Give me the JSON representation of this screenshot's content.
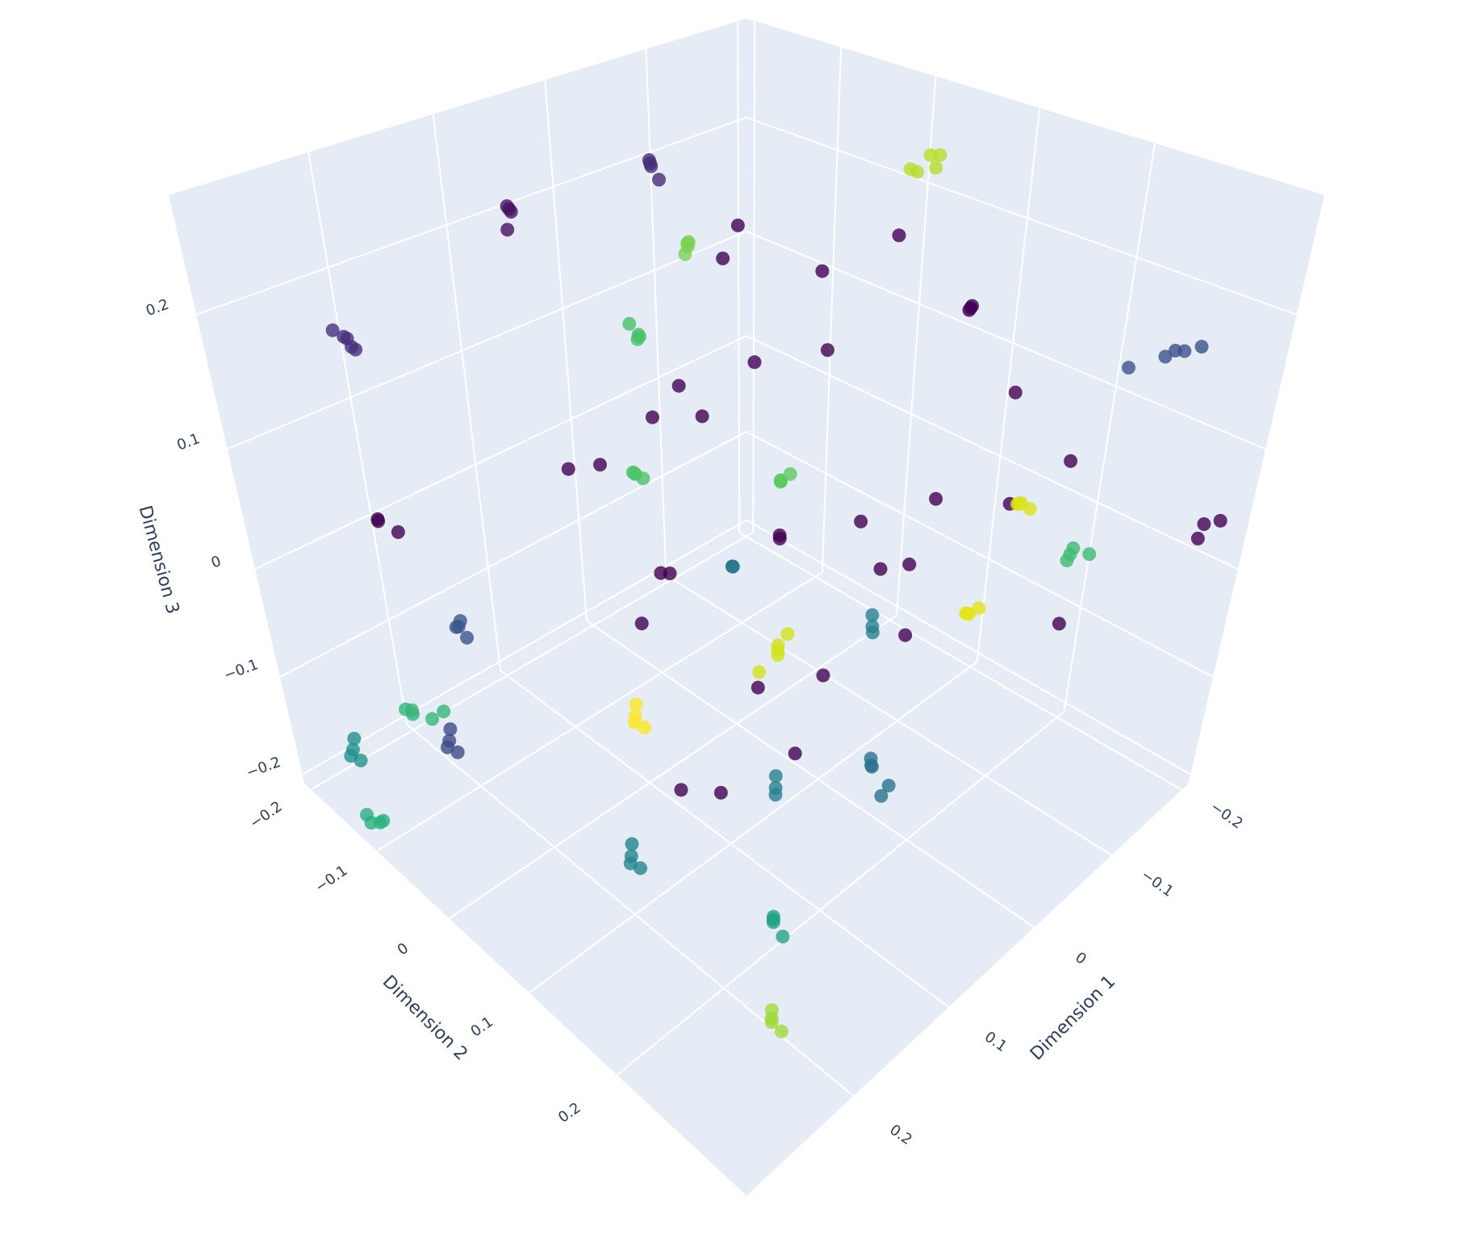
{
  "chart_data": {
    "type": "scatter3d",
    "xaxis_title": "Dimension 1",
    "yaxis_title": "Dimension 2",
    "zaxis_title": "Dimension 3",
    "xlim": [
      -0.21,
      0.3
    ],
    "ylim": [
      -0.21,
      0.33
    ],
    "zlim": [
      -0.21,
      0.28
    ],
    "xticks": [
      {
        "value": -0.2,
        "label": "−0.2"
      },
      {
        "value": -0.1,
        "label": "−0.1"
      },
      0,
      0.1,
      0.2
    ],
    "yticks": [
      {
        "value": -0.2,
        "label": "−0.2"
      },
      {
        "value": -0.1,
        "label": "−0.1"
      },
      0,
      0.1,
      0.2
    ],
    "zticks": [
      {
        "value": -0.2,
        "label": "−0.2"
      },
      {
        "value": -0.1,
        "label": "−0.1"
      },
      0,
      0.1,
      0.2
    ],
    "grid": true,
    "series": [
      {
        "color": "#440154",
        "x": [
          -0.1,
          -0.05,
          0,
          0.05,
          0.1,
          -0.15,
          -0.12,
          -0.08,
          0.02,
          0.08,
          0.12,
          -0.02,
          -0.06,
          0.04,
          0.15,
          -0.1,
          0.0,
          0.06,
          -0.04,
          0.1,
          -0.18,
          -0.13,
          0.07,
          0.11,
          -0.07,
          0.03,
          -0.16,
          0.13,
          0.09,
          -0.03
        ],
        "y": [
          0,
          -0.05,
          0.05,
          0.1,
          0.0,
          0.15,
          0.05,
          -0.1,
          0.12,
          0.15,
          0.05,
          0.0,
          0.08,
          -0.05,
          0.1,
          0.1,
          0.2,
          0.03,
          0.15,
          -0.08,
          0.2,
          0.22,
          0.0,
          0.1,
          0.02,
          0.18,
          0.15,
          0.0,
          0.12,
          -0.1
        ],
        "z": [
          0.1,
          0.2,
          0.0,
          0.05,
          -0.05,
          0.1,
          0.2,
          0.15,
          -0.08,
          -0.1,
          0.03,
          0.12,
          0.0,
          0.08,
          -0.12,
          -0.05,
          0.1,
          0.12,
          -0.06,
          0.05,
          -0.1,
          0.08,
          -0.02,
          -0.15,
          0.18,
          0.05,
          0.0,
          0.1,
          -0.05,
          0.06
        ]
      },
      {
        "color": "#472f7d",
        "x": [
          0.2,
          0.205,
          0.195,
          0.21,
          0.2
        ],
        "y": [
          -0.2,
          -0.195,
          -0.205,
          -0.2,
          -0.19
        ],
        "z": [
          0.15,
          0.155,
          0.14,
          0.16,
          0.145
        ]
      },
      {
        "color": "#3b528b",
        "x": [
          -0.2,
          -0.195,
          -0.205,
          -0.2,
          -0.19
        ],
        "y": [
          0.25,
          0.26,
          0.24,
          0.27,
          0.22
        ],
        "z": [
          0.15,
          0.155,
          0.14,
          0.16,
          0.13
        ]
      },
      {
        "color": "#440154",
        "x": [
          -0.2,
          -0.205,
          -0.195
        ],
        "y": [
          0.3,
          0.31,
          0.3
        ],
        "z": [
          0.03,
          0.035,
          0.02
        ]
      },
      {
        "color": "#b5de2b",
        "x": [
          -0.15,
          -0.145,
          -0.155,
          -0.14,
          -0.16
        ],
        "y": [
          0.05,
          0.06,
          0.055,
          0.04,
          0.03
        ],
        "z": [
          0.25,
          0.245,
          0.25,
          0.24,
          0.23
        ]
      },
      {
        "color": "#7ad151",
        "x": [
          0,
          0.005,
          -0.005,
          0.003
        ],
        "y": [
          -0.05,
          -0.045,
          -0.055,
          -0.05
        ],
        "z": [
          0.2,
          0.205,
          0.2,
          0.195
        ]
      },
      {
        "color": "#4ac16d",
        "x": [
          0.05,
          0.055,
          0.045,
          0.05
        ],
        "y": [
          -0.05,
          -0.045,
          -0.055,
          -0.06
        ],
        "z": [
          0.15,
          0.15,
          0.145,
          0.155
        ]
      },
      {
        "color": "#472d7b",
        "x": [
          -0.05,
          -0.045,
          -0.055,
          -0.05
        ],
        "y": [
          -0.15,
          -0.145,
          -0.155,
          -0.14
        ],
        "z": [
          0.22,
          0.225,
          0.215,
          0.21
        ]
      },
      {
        "color": "#471365",
        "x": [
          0.05,
          0.055,
          0.045,
          0.06
        ],
        "y": [
          -0.2,
          -0.195,
          -0.205,
          -0.19
        ],
        "z": [
          0.2,
          0.205,
          0.195,
          0.19
        ]
      },
      {
        "color": "#440154",
        "x": [
          0.2,
          0.205,
          0.195
        ],
        "y": [
          -0.2,
          -0.19,
          -0.18
        ],
        "z": [
          0,
          0.005,
          -0.005
        ]
      },
      {
        "color": "#39568c",
        "x": [
          0.2,
          0.205,
          0.195,
          0.2
        ],
        "y": [
          -0.1,
          -0.095,
          -0.105,
          -0.09
        ],
        "z": [
          -0.05,
          -0.045,
          -0.05,
          -0.055
        ]
      },
      {
        "color": "#35b779",
        "x": [
          0.25,
          0.255,
          0.245,
          0.25,
          0.24
        ],
        "y": [
          -0.1,
          -0.09,
          -0.08,
          -0.11,
          -0.07
        ],
        "z": [
          -0.1,
          -0.095,
          -0.1,
          -0.105,
          -0.09
        ]
      },
      {
        "color": "#21918c",
        "x": [
          0.28,
          0.285,
          0.275,
          0.28
        ],
        "y": [
          -0.15,
          -0.145,
          -0.155,
          -0.14
        ],
        "z": [
          -0.15,
          -0.15,
          -0.145,
          -0.155
        ]
      },
      {
        "color": "#2ab07f",
        "x": [
          0.3,
          0.295,
          0.3,
          0.29
        ],
        "y": [
          -0.1,
          -0.095,
          -0.105,
          -0.1
        ],
        "z": [
          -0.18,
          -0.18,
          -0.175,
          -0.185
        ]
      },
      {
        "color": "#3e4a89",
        "x": [
          0.25,
          0.255,
          0.245,
          0.25
        ],
        "y": [
          -0.05,
          -0.045,
          -0.055,
          -0.04
        ],
        "z": [
          -0.1,
          -0.1,
          -0.095,
          -0.105
        ]
      },
      {
        "color": "#fde725",
        "x": [
          0.15,
          0.155,
          0.145,
          0.15
        ],
        "y": [
          0.05,
          0.055,
          0.045,
          0.06
        ],
        "z": [
          -0.08,
          -0.08,
          -0.075,
          -0.085
        ]
      },
      {
        "color": "#24868e",
        "x": [
          0.2,
          0.205,
          0.195,
          0.2
        ],
        "y": [
          0.1,
          0.105,
          0.095,
          0.11
        ],
        "z": [
          -0.15,
          -0.15,
          -0.145,
          -0.155
        ]
      },
      {
        "color": "#20a486",
        "x": [
          0.15,
          0.155,
          0.145,
          0.15
        ],
        "y": [
          0.2,
          0.205,
          0.195,
          0.21
        ],
        "z": [
          -0.18,
          -0.175,
          -0.185,
          -0.19
        ]
      },
      {
        "color": "#a0da39",
        "x": [
          0.2,
          0.205,
          0.195,
          0.2
        ],
        "y": [
          0.25,
          0.255,
          0.245,
          0.26
        ],
        "z": [
          -0.2,
          -0.195,
          -0.2,
          -0.205
        ]
      },
      {
        "color": "#277f8e",
        "x": [
          0.1,
          0.105,
          0.095
        ],
        "y": [
          0.15,
          0.155,
          0.145
        ],
        "z": [
          -0.12,
          -0.12,
          -0.115
        ]
      },
      {
        "color": "#2c728e",
        "x": [
          0.05,
          0.055,
          0.045,
          0.06,
          0.04
        ],
        "y": [
          0.2,
          0.205,
          0.195,
          0.22,
          0.21
        ],
        "z": [
          -0.1,
          -0.095,
          -0.1,
          -0.11,
          -0.12
        ]
      },
      {
        "color": "#d2e21b",
        "x": [
          0.05,
          0.055,
          0.045,
          0.05,
          0.06
        ],
        "y": [
          0.1,
          0.105,
          0.095,
          0.11,
          0.09
        ],
        "z": [
          -0.05,
          -0.04,
          -0.06,
          -0.03,
          -0.07
        ]
      },
      {
        "color": "#e5e419",
        "x": [
          -0.05,
          -0.045,
          -0.055,
          -0.05
        ],
        "y": [
          0.2,
          0.205,
          0.195,
          0.21
        ],
        "z": [
          -0.02,
          -0.015,
          -0.025,
          -0.01
        ]
      },
      {
        "color": "#dde318",
        "x": [
          -0.1,
          -0.095,
          -0.105,
          -0.1
        ],
        "y": [
          0.2,
          0.205,
          0.195,
          0.21
        ],
        "z": [
          0.05,
          0.055,
          0.045,
          0.05
        ]
      },
      {
        "color": "#3fbc73",
        "x": [
          -0.1,
          -0.095,
          -0.105,
          -0.11
        ],
        "y": [
          0.25,
          0.255,
          0.245,
          0.26
        ],
        "z": [
          0.03,
          0.04,
          0.02,
          0.03
        ]
      },
      {
        "color": "#5ec962",
        "x": [
          0,
          0.005,
          -0.005,
          0
        ],
        "y": [
          0.05,
          0.055,
          0.045,
          0.06
        ],
        "z": [
          0.05,
          0.055,
          0.045,
          0.06
        ]
      },
      {
        "color": "#2a788e",
        "x": [
          0.05,
          0.055,
          0.045
        ],
        "y": [
          0.05,
          0.055,
          0.045
        ],
        "z": [
          0,
          0.005,
          -0.005
        ]
      },
      {
        "color": "#4ec36b",
        "x": [
          0.1,
          0.105,
          0.095,
          0.1
        ],
        "y": [
          0,
          0.005,
          -0.005,
          0.01
        ],
        "z": [
          0.08,
          0.085,
          0.075,
          0.08
        ]
      },
      {
        "color": "#440154",
        "x": [
          -0.15,
          -0.145,
          -0.155
        ],
        "y": [
          0.1,
          0.105,
          0.095
        ],
        "z": [
          0.15,
          0.155,
          0.145
        ]
      },
      {
        "color": "#26828e",
        "x": [
          0,
          0.005,
          -0.005
        ],
        "y": [
          0.15,
          0.155,
          0.145
        ],
        "z": [
          -0.03,
          -0.03,
          -0.025
        ]
      }
    ]
  }
}
